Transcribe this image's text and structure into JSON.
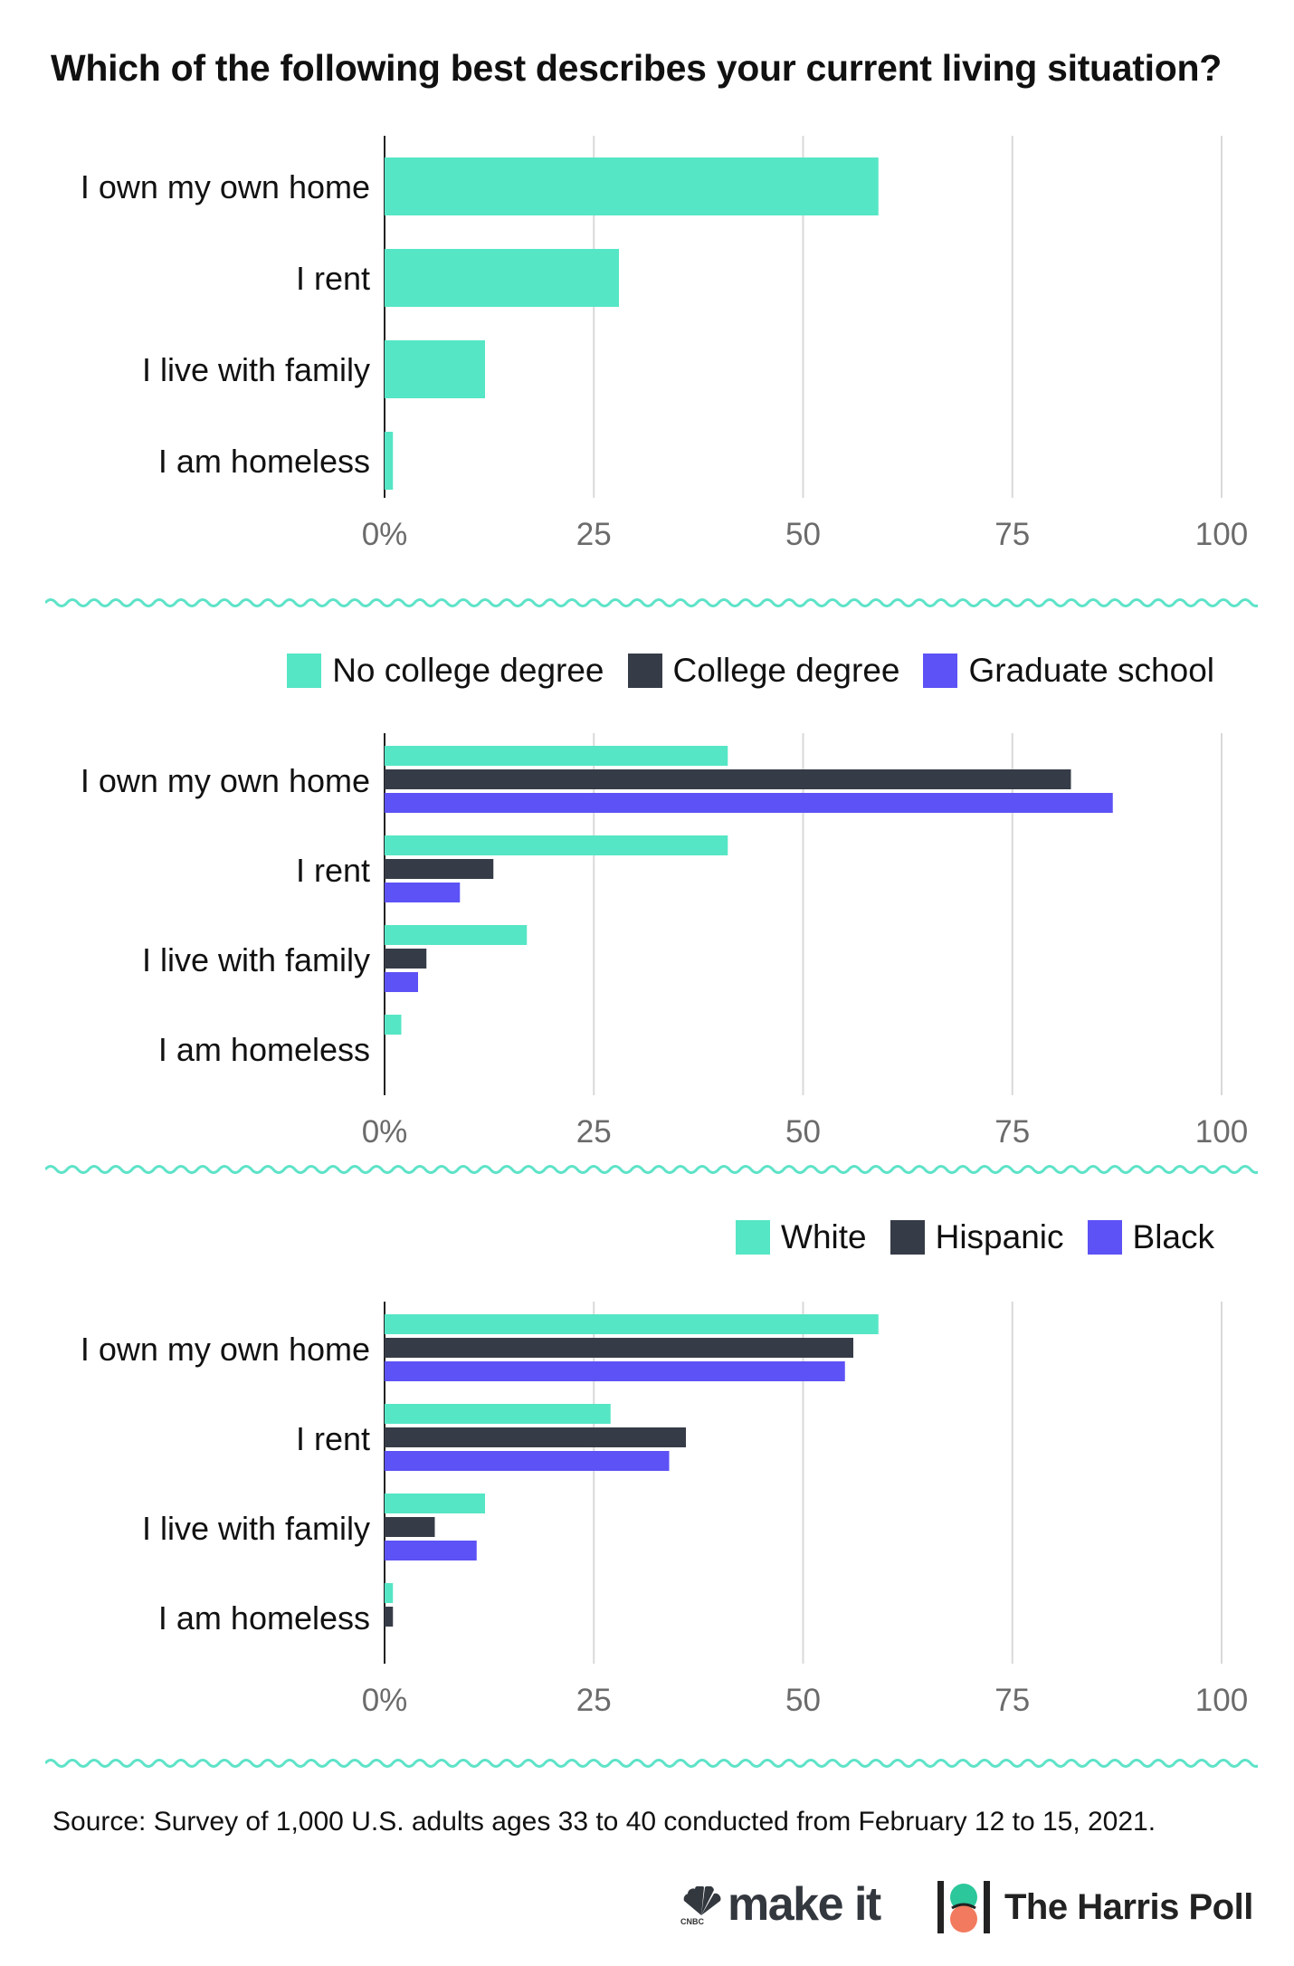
{
  "title": "Which of the following best describes your current living situation?",
  "colors": {
    "teal": "#55e6c5",
    "dark": "#363c47",
    "purple": "#5d52f5",
    "grid": "#d9d9d9",
    "wave": "#5ee3c8"
  },
  "chart_data": [
    {
      "type": "bar",
      "orientation": "horizontal",
      "categories": [
        "I own my own home",
        "I rent",
        "I live with family",
        "I am homeless"
      ],
      "series": [
        {
          "values": [
            59,
            28,
            12,
            1
          ]
        }
      ],
      "xlim": [
        0,
        100
      ],
      "tick_labels": [
        "0%",
        "25",
        "50",
        "75",
        "100"
      ],
      "grid": true
    },
    {
      "type": "bar",
      "orientation": "horizontal",
      "categories": [
        "I own my own home",
        "I rent",
        "I live with family",
        "I am homeless"
      ],
      "series": [
        {
          "name": "No college degree",
          "values": [
            41,
            41,
            17,
            2
          ]
        },
        {
          "name": "College degree",
          "values": [
            82,
            13,
            5,
            0
          ]
        },
        {
          "name": "Graduate school",
          "values": [
            87,
            9,
            4,
            0
          ]
        }
      ],
      "xlim": [
        0,
        100
      ],
      "tick_labels": [
        "0%",
        "25",
        "50",
        "75",
        "100"
      ],
      "grid": true,
      "legend_position": "top-right"
    },
    {
      "type": "bar",
      "orientation": "horizontal",
      "categories": [
        "I own my own home",
        "I rent",
        "I live with family",
        "I am homeless"
      ],
      "series": [
        {
          "name": "White",
          "values": [
            59,
            27,
            12,
            1
          ]
        },
        {
          "name": "Hispanic",
          "values": [
            56,
            36,
            6,
            1
          ]
        },
        {
          "name": "Black",
          "values": [
            55,
            34,
            11,
            0
          ]
        }
      ],
      "xlim": [
        0,
        100
      ],
      "tick_labels": [
        "0%",
        "25",
        "50",
        "75",
        "100"
      ],
      "grid": true,
      "legend_position": "top-right"
    }
  ],
  "source": "Source: Survey of 1,000 U.S. adults ages 33 to 40 conducted from February 12 to 15, 2021.",
  "branding": {
    "cnbc": "CNBC",
    "make_it": "make it",
    "harris": "The Harris Poll"
  }
}
